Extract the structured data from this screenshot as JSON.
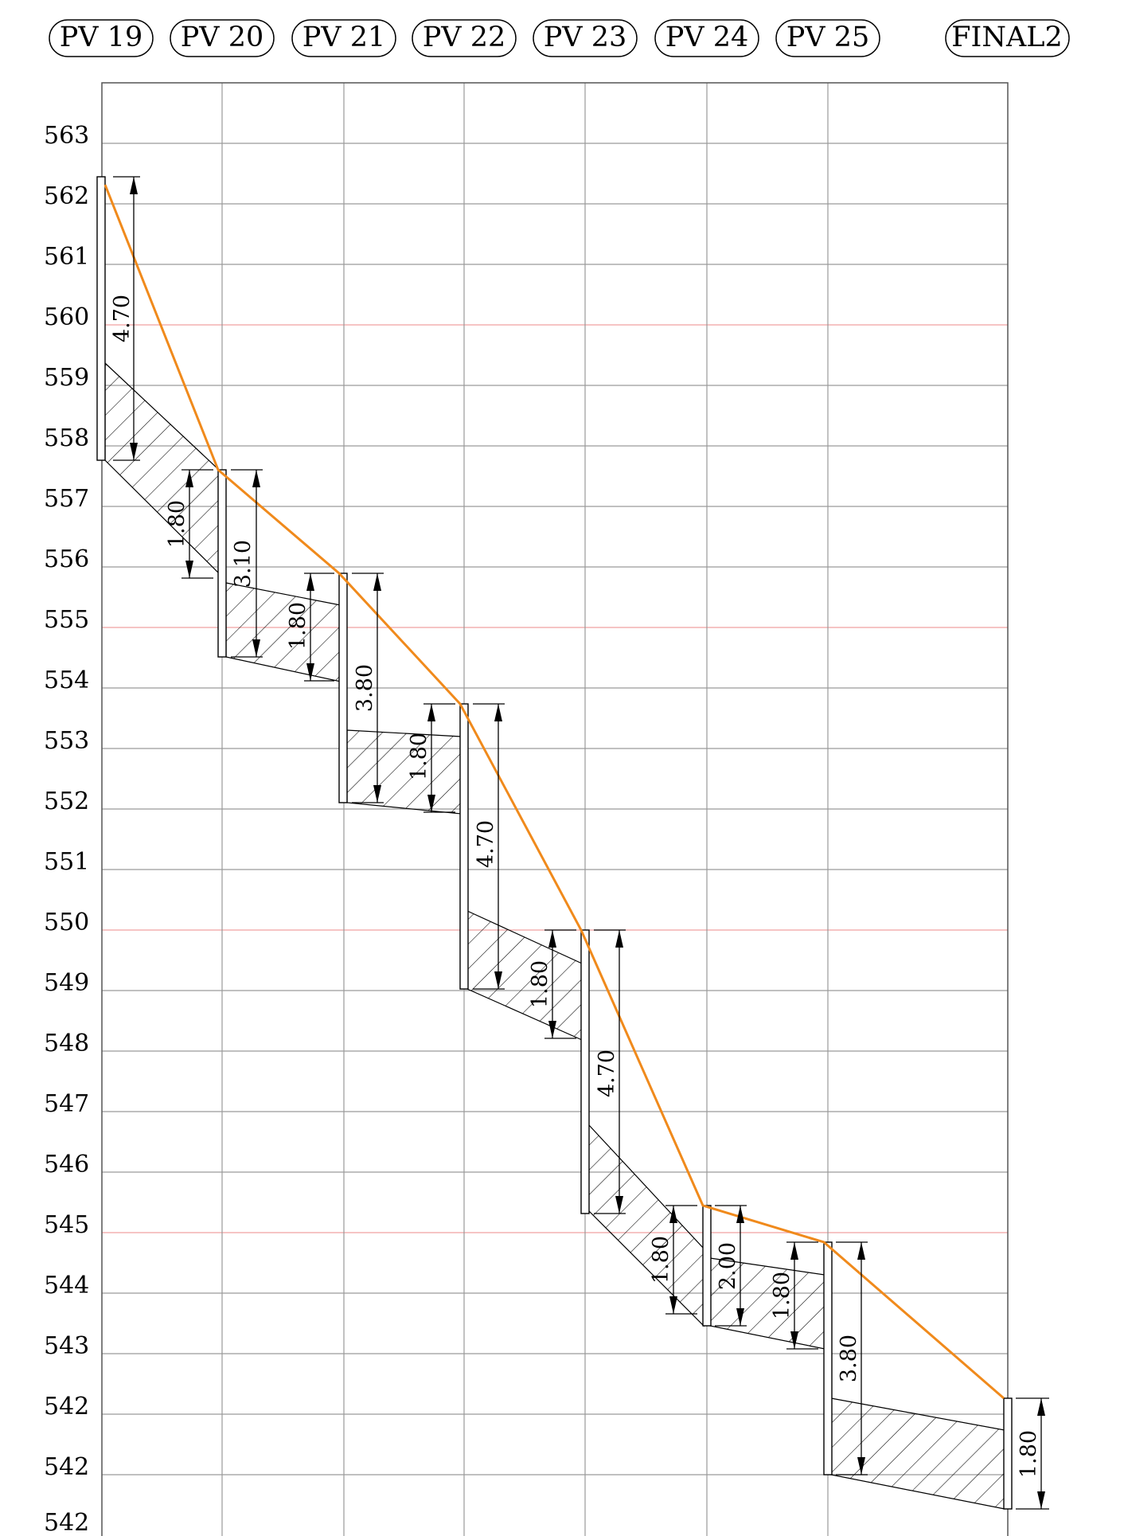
{
  "stations": [
    "PV 19",
    "PV 20",
    "PV 21",
    "PV 22",
    "PV 23",
    "PV 24",
    "PV 25",
    "FINAL2"
  ],
  "elevation_labels": [
    "563",
    "562",
    "561",
    "560",
    "559",
    "558",
    "557",
    "556",
    "555",
    "554",
    "553",
    "552",
    "551",
    "550",
    "549",
    "548",
    "547",
    "546",
    "545",
    "544",
    "543",
    "542",
    "542",
    "542"
  ],
  "colors": {
    "ground_line": "#f08a1c",
    "grid": "#9a9a9a",
    "grid_highlight": "#f0a0a0",
    "ink": "#000000"
  },
  "profile": {
    "ground_elevations": [
      562.3,
      557.8,
      556.1,
      553.7,
      550.0,
      545.4,
      544.8,
      542.3
    ],
    "manholes": [
      {
        "station": "PV 19",
        "top": 562.5,
        "depth": 4.7,
        "depth_label": "4.70",
        "invert_out": 559.4
      },
      {
        "station": "PV 20",
        "top": 557.8,
        "depth": 3.1,
        "depth_label": "3.10",
        "invert_in": 556.0,
        "invert_out": 555.8
      },
      {
        "station": "PV 21",
        "top": 556.1,
        "depth": 3.8,
        "depth_label": "3.80",
        "invert_in": 554.2,
        "invert_out": 553.3
      },
      {
        "station": "PV 22",
        "top": 553.7,
        "depth": 4.7,
        "depth_label": "4.70",
        "invert_in": 551.9,
        "invert_out": 550.3
      },
      {
        "station": "PV 23",
        "top": 550.0,
        "depth": 4.7,
        "depth_label": "4.70",
        "invert_in": 548.2,
        "invert_out": 546.8
      },
      {
        "station": "PV 24",
        "top": 545.4,
        "depth": 2.0,
        "depth_label": "2.00",
        "invert_in": 543.6,
        "invert_out": 544.6
      },
      {
        "station": "PV 25",
        "top": 544.8,
        "depth": 3.8,
        "depth_label": "3.80",
        "invert_in": 543.0,
        "invert_out": 542.3
      },
      {
        "station": "FINAL2",
        "top": 542.3,
        "depth": 1.8,
        "depth_label": "1.80",
        "invert_in": 540.5
      }
    ],
    "pipe_dims": [
      "1.80",
      "1.80",
      "1.80",
      "1.80",
      "1.80",
      "1.80"
    ]
  }
}
